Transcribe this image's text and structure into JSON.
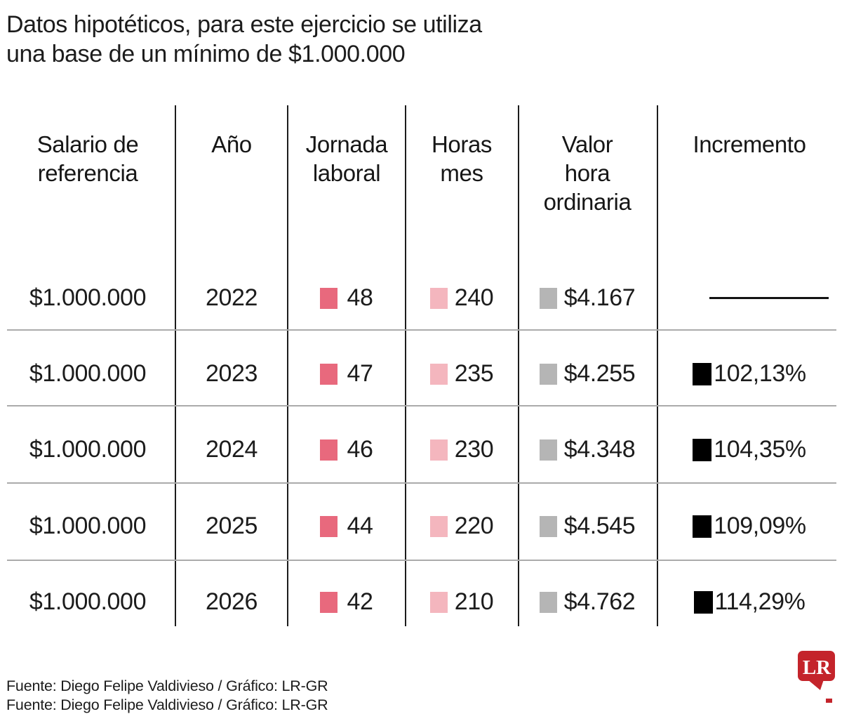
{
  "title": {
    "line1": "Datos hipotéticos, para este ejercicio se utiliza",
    "line2": "una base de un mínimo de $1.000.000"
  },
  "table": {
    "headers": [
      "Salario de\nreferencia",
      "Año",
      "Jornada\nlaboral",
      "Horas\nmes",
      "Valor\nhora\nordinaria",
      "Incremento"
    ],
    "rows": [
      {
        "salario": "$1.000.000",
        "ano": "2022",
        "jornada": "48",
        "horas": "240",
        "valor": "$4.167",
        "incremento": ""
      },
      {
        "salario": "$1.000.000",
        "ano": "2023",
        "jornada": "47",
        "horas": "235",
        "valor": "$4.255",
        "incremento": "102,13%"
      },
      {
        "salario": "$1.000.000",
        "ano": "2024",
        "jornada": "46",
        "horas": "230",
        "valor": "$4.348",
        "incremento": "104,35%"
      },
      {
        "salario": "$1.000.000",
        "ano": "2025",
        "jornada": "44",
        "horas": "220",
        "valor": "$4.545",
        "incremento": "109,09%"
      },
      {
        "salario": "$1.000.000",
        "ano": "2026",
        "jornada": "42",
        "horas": "210",
        "valor": "$4.762",
        "incremento": "114,29%"
      }
    ]
  },
  "legend_colors": {
    "jornada": "#e8697d",
    "horas": "#f4b6be",
    "valor": "#b5b5b5",
    "incremento": "#000000"
  },
  "footer": {
    "source": "Fuente: Diego Felipe Valdivieso / Gráfico: LR-GR",
    "clipped": "Fuente: Diego Felipe Valdivieso / Gráfico: LR-GR"
  },
  "logo": {
    "text": "LR",
    "color": "#c4242b"
  },
  "chart_data": {
    "type": "table",
    "title": "Datos hipotéticos, para este ejercicio se utiliza una base de un mínimo de $1.000.000",
    "columns": [
      "Salario de referencia",
      "Año",
      "Jornada laboral",
      "Horas mes",
      "Valor hora ordinaria",
      "Incremento"
    ],
    "rows": [
      [
        "$1.000.000",
        2022,
        48,
        240,
        "$4.167",
        null
      ],
      [
        "$1.000.000",
        2023,
        47,
        235,
        "$4.255",
        "102,13%"
      ],
      [
        "$1.000.000",
        2024,
        46,
        230,
        "$4.348",
        "104,35%"
      ],
      [
        "$1.000.000",
        2025,
        44,
        220,
        "$4.545",
        "109,09%"
      ],
      [
        "$1.000.000",
        2026,
        42,
        210,
        "$4.762",
        "114,29%"
      ]
    ],
    "source": "Fuente: Diego Felipe Valdivieso / Gráfico: LR-GR",
    "notes": "Swatch colors: jornada laboral #e8697d, horas mes #f4b6be, valor hora #b5b5b5, incremento #000000; 2022 incremento shown as dash"
  }
}
